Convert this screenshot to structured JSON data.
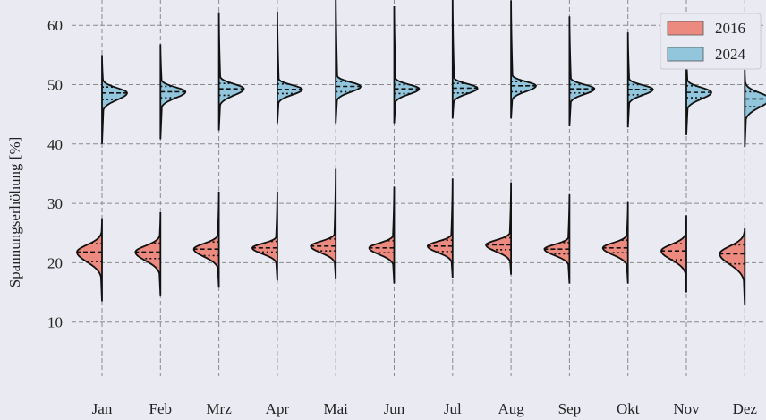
{
  "chart_data": {
    "type": "violin",
    "ylabel": "Spannungserhöhung [%]",
    "xlabel": "",
    "ylim": [
      5,
      68
    ],
    "yticks": [
      10,
      20,
      30,
      40,
      50,
      60
    ],
    "grid": true,
    "legend_position": "top-right",
    "background": "#eaeaf2",
    "categories": [
      "Jan",
      "Feb",
      "Mrz",
      "Apr",
      "Mai",
      "Jun",
      "Jul",
      "Aug",
      "Sep",
      "Okt",
      "Nov",
      "Dez"
    ],
    "series": [
      {
        "name": "2016",
        "side": "left",
        "color": "#ec8a7f",
        "min": [
          13.5,
          14.5,
          15.8,
          17.0,
          17.3,
          16.5,
          17.5,
          18.0,
          16.5,
          16.5,
          15.0,
          12.8
        ],
        "q1": [
          20.2,
          20.7,
          21.2,
          21.8,
          22.0,
          21.7,
          21.9,
          22.2,
          21.5,
          21.7,
          20.5,
          19.8
        ],
        "median": [
          21.8,
          21.8,
          22.3,
          22.5,
          22.8,
          22.5,
          22.8,
          23.0,
          22.3,
          22.5,
          22.0,
          21.5
        ],
        "q3": [
          23.2,
          23.3,
          23.5,
          23.6,
          24.0,
          23.7,
          23.8,
          24.2,
          23.4,
          23.8,
          23.2,
          23.0
        ],
        "max": [
          27.5,
          28.5,
          32.0,
          32.0,
          35.8,
          32.8,
          34.2,
          33.5,
          31.5,
          30.2,
          28.0,
          25.8
        ]
      },
      {
        "name": "2024",
        "side": "right",
        "color": "#92c6dd",
        "min": [
          40.0,
          40.8,
          42.3,
          43.5,
          43.5,
          43.5,
          44.3,
          44.3,
          43.0,
          42.8,
          41.5,
          39.5
        ],
        "q1": [
          47.5,
          47.8,
          48.2,
          48.5,
          48.8,
          48.5,
          48.6,
          48.8,
          48.6,
          48.3,
          47.8,
          46.3
        ],
        "median": [
          48.6,
          48.8,
          49.3,
          49.2,
          49.7,
          49.3,
          49.4,
          49.8,
          49.3,
          49.2,
          48.7,
          47.6
        ],
        "q3": [
          49.6,
          49.7,
          50.2,
          50.1,
          50.5,
          50.0,
          50.2,
          50.5,
          50.0,
          50.0,
          49.8,
          48.8
        ],
        "max": [
          55.0,
          56.8,
          62.2,
          62.3,
          66.7,
          63.2,
          64.8,
          64.2,
          61.5,
          58.8,
          56.2,
          52.5
        ]
      }
    ]
  }
}
